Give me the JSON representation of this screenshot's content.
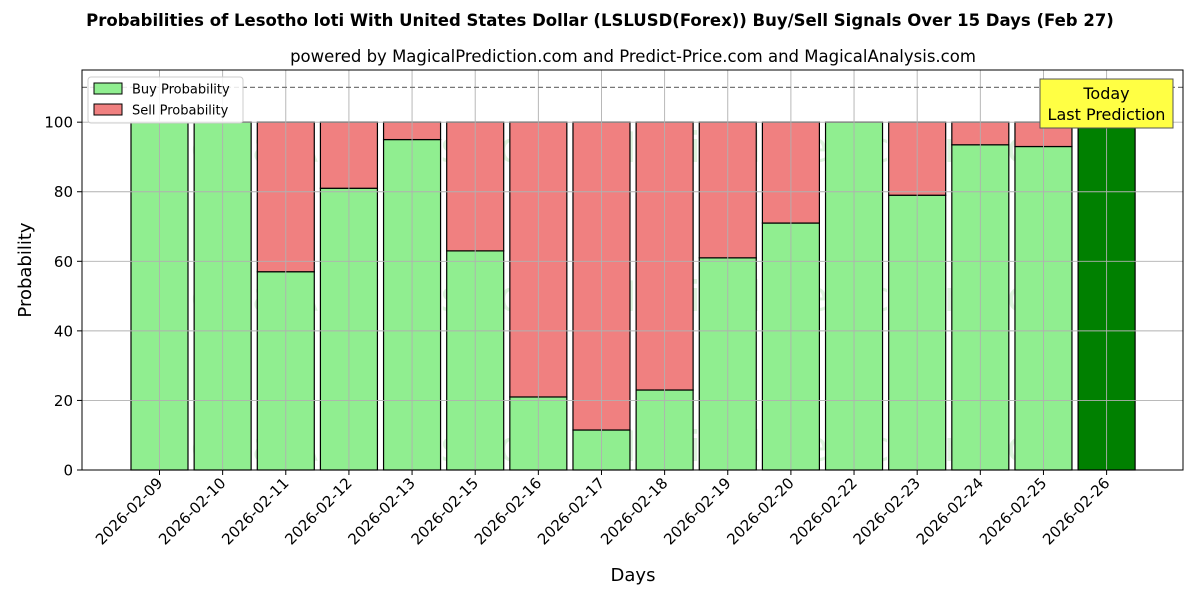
{
  "chart_data": {
    "type": "bar",
    "title": "Probabilities of Lesotho loti With United States Dollar (LSLUSD(Forex)) Buy/Sell Signals Over 15 Days (Feb 27)",
    "subtitle": "powered by MagicalPrediction.com and Predict-Price.com and MagicalAnalysis.com",
    "xlabel": "Days",
    "ylabel": "Probability",
    "ylim": [
      0,
      115
    ],
    "yticks": [
      0,
      20,
      40,
      60,
      80,
      100
    ],
    "reference_line": 110,
    "grid": true,
    "legend_position": "top-left",
    "categories": [
      "2026-02-09",
      "2026-02-10",
      "2026-02-11",
      "2026-02-12",
      "2026-02-13",
      "2026-02-15",
      "2026-02-16",
      "2026-02-17",
      "2026-02-18",
      "2026-02-19",
      "2026-02-20",
      "2026-02-22",
      "2026-02-23",
      "2026-02-24",
      "2026-02-25",
      "2026-02-26"
    ],
    "series": [
      {
        "name": "Buy Probability",
        "color": "#90EE90",
        "values": [
          100,
          100,
          57,
          81,
          95,
          63,
          21,
          11.5,
          23,
          61,
          71,
          100,
          79,
          93.5,
          93,
          100
        ]
      },
      {
        "name": "Sell Probability",
        "color": "#F08080",
        "values": [
          0,
          0,
          43,
          19,
          5,
          37,
          79,
          88.5,
          77,
          39,
          29,
          0,
          21,
          6.5,
          7,
          0
        ]
      }
    ],
    "today_index": 15,
    "today_color": "#008000",
    "annotation": {
      "line1": "Today",
      "line2": "Last Prediction",
      "color": "#FFFF44"
    },
    "watermarks": [
      "MagicalAnalysis.com",
      "MagicalPrediction.com"
    ]
  }
}
